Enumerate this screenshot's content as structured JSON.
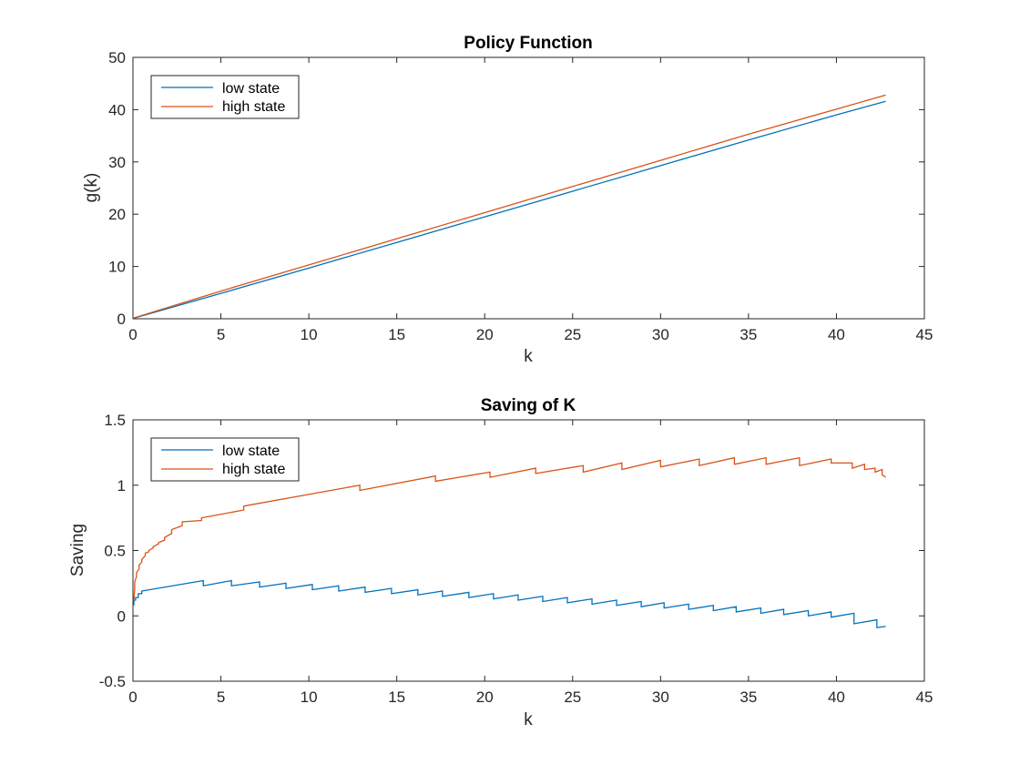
{
  "chart_data": [
    {
      "type": "line",
      "title": "Policy Function",
      "xlabel": "k",
      "ylabel": "g(k)",
      "xlim": [
        0,
        45
      ],
      "ylim": [
        0,
        50
      ],
      "xticks": [
        0,
        5,
        10,
        15,
        20,
        25,
        30,
        35,
        40,
        45
      ],
      "yticks": [
        0,
        10,
        20,
        30,
        40,
        50
      ],
      "xtick_labels": [
        "0",
        "5",
        "10",
        "15",
        "20",
        "25",
        "30",
        "35",
        "40",
        "45"
      ],
      "ytick_labels": [
        "0",
        "10",
        "20",
        "30",
        "40",
        "50"
      ],
      "legend_position": "top-left",
      "grid": false,
      "series": [
        {
          "name": "low state",
          "color": "#0072BD",
          "x": [
            0.05,
            5,
            10,
            15,
            20,
            25,
            30,
            35,
            40,
            42.8
          ],
          "y": [
            0.1,
            4.85,
            9.7,
            14.6,
            19.5,
            24.4,
            29.3,
            34.2,
            39.0,
            41.6
          ]
        },
        {
          "name": "high state",
          "color": "#D95319",
          "x": [
            0.05,
            5,
            10,
            15,
            20,
            25,
            30,
            35,
            40,
            42.8
          ],
          "y": [
            0.15,
            5.3,
            10.3,
            15.3,
            20.3,
            25.3,
            30.3,
            35.3,
            40.1,
            42.8
          ]
        }
      ]
    },
    {
      "type": "line",
      "title": "Saving of K",
      "xlabel": "k",
      "ylabel": "Saving",
      "xlim": [
        0,
        45
      ],
      "ylim": [
        -0.5,
        1.5
      ],
      "xticks": [
        0,
        5,
        10,
        15,
        20,
        25,
        30,
        35,
        40,
        45
      ],
      "yticks": [
        -0.5,
        0,
        0.5,
        1,
        1.5
      ],
      "xtick_labels": [
        "0",
        "5",
        "10",
        "15",
        "20",
        "25",
        "30",
        "35",
        "40",
        "45"
      ],
      "ytick_labels": [
        "-0.5",
        "0",
        "0.5",
        "1",
        "1.5"
      ],
      "legend_position": "top-left",
      "grid": false,
      "series": [
        {
          "name": "low state",
          "color": "#0072BD",
          "x": [
            0.05,
            0.05,
            0.15,
            0.15,
            0.3,
            0.3,
            0.5,
            0.5,
            4.0,
            4.0,
            5.6,
            5.6,
            7.2,
            7.2,
            8.7,
            8.7,
            10.2,
            10.2,
            11.7,
            11.7,
            13.2,
            13.2,
            14.7,
            14.7,
            16.2,
            16.2,
            17.6,
            17.6,
            19.1,
            19.1,
            20.5,
            20.5,
            21.9,
            21.9,
            23.3,
            23.3,
            24.7,
            24.7,
            26.1,
            26.1,
            27.5,
            27.5,
            28.9,
            28.9,
            30.2,
            30.2,
            31.6,
            31.6,
            33.0,
            33.0,
            34.3,
            34.3,
            35.7,
            35.7,
            37.0,
            37.0,
            38.4,
            38.4,
            39.7,
            39.7,
            41.0,
            41.0,
            42.3,
            42.3,
            42.8
          ],
          "y": [
            0.08,
            0.12,
            0.12,
            0.14,
            0.14,
            0.17,
            0.17,
            0.19,
            0.27,
            0.23,
            0.27,
            0.23,
            0.26,
            0.22,
            0.25,
            0.21,
            0.24,
            0.2,
            0.23,
            0.19,
            0.22,
            0.18,
            0.21,
            0.17,
            0.2,
            0.16,
            0.19,
            0.15,
            0.18,
            0.14,
            0.17,
            0.13,
            0.16,
            0.12,
            0.15,
            0.11,
            0.14,
            0.1,
            0.13,
            0.09,
            0.12,
            0.08,
            0.11,
            0.07,
            0.1,
            0.06,
            0.09,
            0.05,
            0.08,
            0.04,
            0.07,
            0.03,
            0.06,
            0.02,
            0.05,
            0.01,
            0.04,
            0.0,
            0.03,
            -0.01,
            0.02,
            -0.06,
            -0.03,
            -0.09,
            -0.08
          ]
        },
        {
          "name": "high state",
          "color": "#D95319",
          "x": [
            0.05,
            0.1,
            0.1,
            0.2,
            0.2,
            0.35,
            0.35,
            0.5,
            0.5,
            0.7,
            0.7,
            0.9,
            0.9,
            1.15,
            1.15,
            1.45,
            1.45,
            1.8,
            1.8,
            2.2,
            2.2,
            2.8,
            2.8,
            3.9,
            3.9,
            6.3,
            6.3,
            12.9,
            12.9,
            17.2,
            17.2,
            20.3,
            20.3,
            22.9,
            22.9,
            25.6,
            25.6,
            27.8,
            27.8,
            30.0,
            30.0,
            32.2,
            32.2,
            34.2,
            34.2,
            36.0,
            36.0,
            37.9,
            37.9,
            39.7,
            39.7,
            40.9,
            40.9,
            41.6,
            41.6,
            42.2,
            42.2,
            42.6,
            42.6,
            42.8
          ],
          "y": [
            0.12,
            0.21,
            0.26,
            0.3,
            0.33,
            0.36,
            0.39,
            0.41,
            0.43,
            0.46,
            0.48,
            0.49,
            0.5,
            0.52,
            0.53,
            0.55,
            0.56,
            0.58,
            0.6,
            0.63,
            0.66,
            0.69,
            0.72,
            0.73,
            0.75,
            0.81,
            0.84,
            1.0,
            0.96,
            1.07,
            1.03,
            1.1,
            1.06,
            1.13,
            1.09,
            1.15,
            1.1,
            1.17,
            1.12,
            1.19,
            1.14,
            1.2,
            1.15,
            1.21,
            1.16,
            1.21,
            1.16,
            1.21,
            1.15,
            1.2,
            1.17,
            1.17,
            1.13,
            1.16,
            1.12,
            1.13,
            1.1,
            1.12,
            1.08,
            1.06
          ]
        }
      ]
    }
  ]
}
